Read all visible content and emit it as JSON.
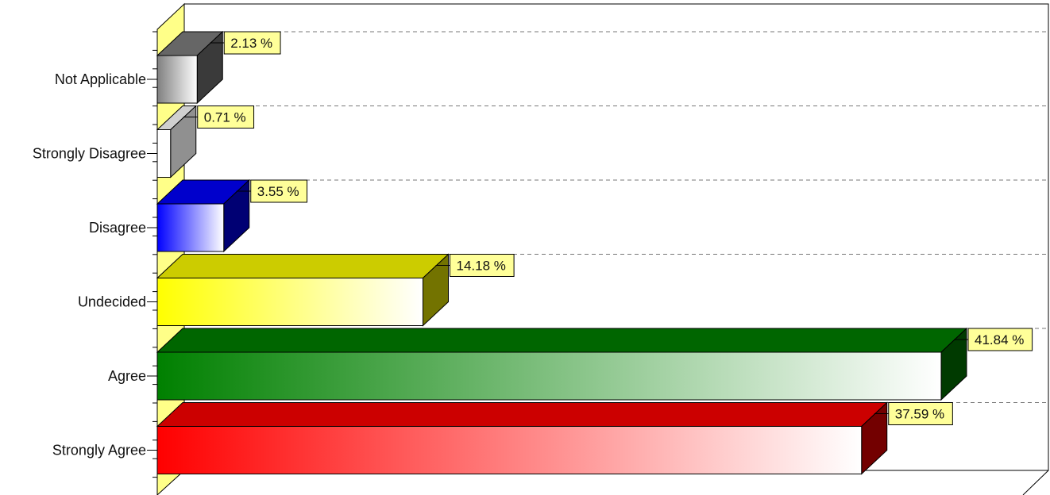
{
  "chart_data": {
    "type": "bar",
    "orientation": "horizontal",
    "style": "3d",
    "categories": [
      "Not Applicable",
      "Strongly Disagree",
      "Disagree",
      "Undecided",
      "Agree",
      "Strongly Agree"
    ],
    "values": [
      2.13,
      0.71,
      3.55,
      14.18,
      41.84,
      37.59
    ],
    "value_labels": [
      "2.13 %",
      "0.71 %",
      "3.55 %",
      "14.18 %",
      "41.84 %",
      "37.59 %"
    ],
    "colors": [
      "#808080",
      "#ffffff",
      "#0000ff",
      "#ffff00",
      "#008000",
      "#ff0000"
    ],
    "label_background": "#ffff99",
    "wall_color": "#ffff88",
    "grid": true,
    "legend": "none"
  }
}
